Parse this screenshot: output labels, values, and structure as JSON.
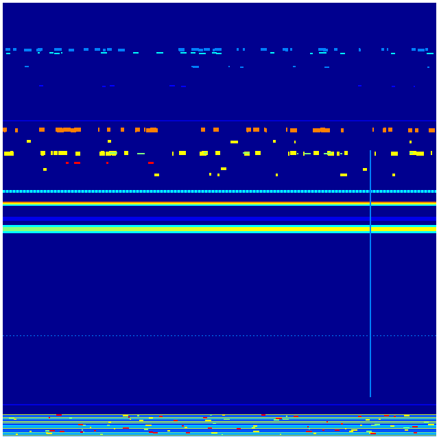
{
  "colormap": {
    "background": "#00008f",
    "low": "#0000ff",
    "mid_low": "#0080ff",
    "mid": "#00ffff",
    "mid_high": "#80ff80",
    "high": "#ffff00",
    "higher": "#ff8000",
    "max": "#ff0000"
  }
}
